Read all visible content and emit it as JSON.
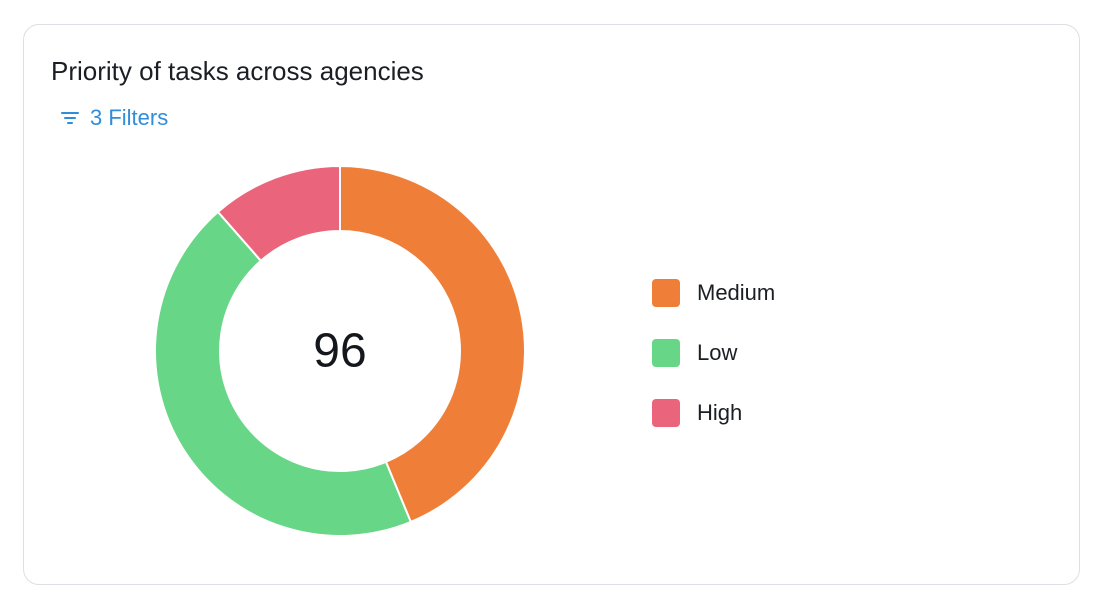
{
  "card": {
    "title": "Priority of tasks across agencies",
    "filter_label": "3 Filters"
  },
  "chart_data": {
    "type": "pie",
    "variant": "donut",
    "center_label": "96",
    "total": 96,
    "categories": [
      "Medium",
      "Low",
      "High"
    ],
    "values": [
      42,
      43,
      11
    ],
    "colors": [
      "#ef7f38",
      "#67d687",
      "#ea647c"
    ],
    "legend_placement": "right"
  },
  "colors": {
    "accent": "#2f8ddb",
    "border": "#dcdfe3"
  },
  "icons": {
    "filter": "filter-icon"
  }
}
